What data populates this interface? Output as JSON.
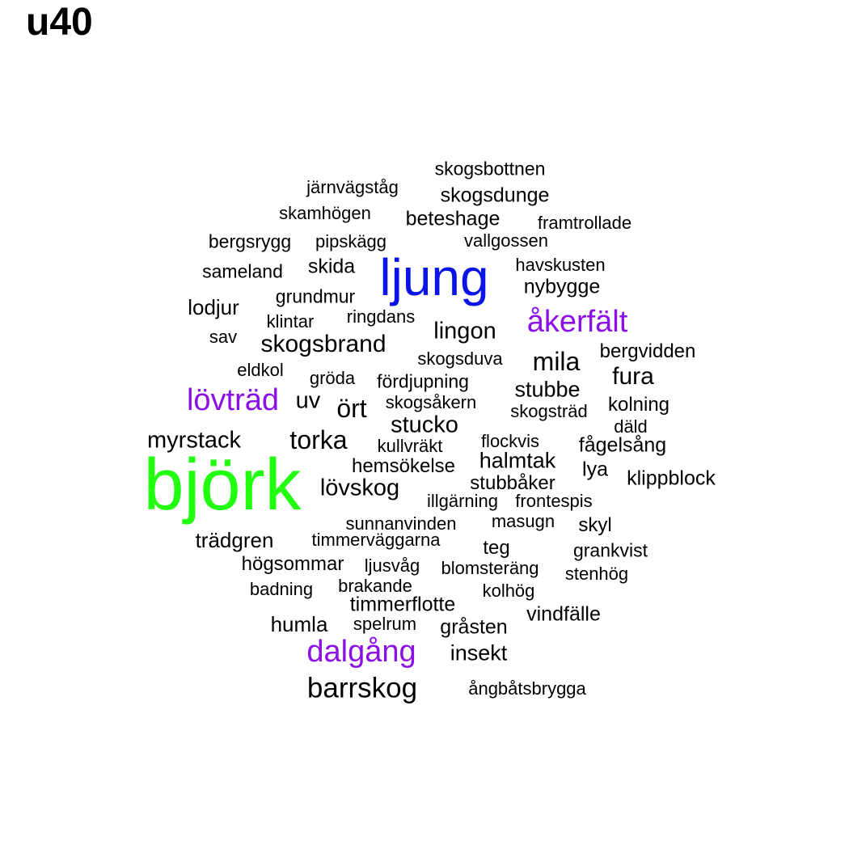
{
  "title": "u40",
  "colors": {
    "top": "#22ff11",
    "second": "#0a14e6",
    "third": "#8a10e6",
    "rest": "#000000"
  },
  "words": [
    {
      "text": "björk",
      "weight": 1,
      "color": "top"
    },
    {
      "text": "ljung",
      "weight": 0.85,
      "color": "second"
    },
    {
      "text": "åkerfält",
      "weight": 0.55,
      "color": "third"
    },
    {
      "text": "lövträd",
      "weight": 0.55,
      "color": "third"
    },
    {
      "text": "dalgång",
      "weight": 0.55,
      "color": "third"
    },
    {
      "text": "barrskog",
      "weight": 0.5,
      "color": "rest"
    },
    {
      "text": "mila",
      "weight": 0.45,
      "color": "rest"
    },
    {
      "text": "torka",
      "weight": 0.45,
      "color": "rest"
    },
    {
      "text": "ört",
      "weight": 0.45,
      "color": "rest"
    },
    {
      "text": "skogsbrand",
      "weight": 0.4,
      "color": "rest"
    },
    {
      "text": "fura",
      "weight": 0.4,
      "color": "rest"
    },
    {
      "text": "myrstack",
      "weight": 0.4,
      "color": "rest"
    },
    {
      "text": "lingon",
      "weight": 0.4,
      "color": "rest"
    },
    {
      "text": "stucko",
      "weight": 0.4,
      "color": "rest"
    },
    {
      "text": "lövskog",
      "weight": 0.4,
      "color": "rest"
    },
    {
      "text": "uv",
      "weight": 0.4,
      "color": "rest"
    },
    {
      "text": "stubbe",
      "weight": 0.35,
      "color": "rest"
    },
    {
      "text": "halmtak",
      "weight": 0.35,
      "color": "rest"
    },
    {
      "text": "insekt",
      "weight": 0.35,
      "color": "rest"
    },
    {
      "text": "trädgren",
      "weight": 0.35,
      "color": "rest"
    },
    {
      "text": "humla",
      "weight": 0.33,
      "color": "rest"
    },
    {
      "text": "lodjur",
      "weight": 0.33,
      "color": "rest"
    },
    {
      "text": "fågelsång",
      "weight": 0.33,
      "color": "rest"
    },
    {
      "text": "klippblock",
      "weight": 0.33,
      "color": "rest"
    },
    {
      "text": "lya",
      "weight": 0.33,
      "color": "rest"
    },
    {
      "text": "skogsdunge",
      "weight": 0.33,
      "color": "rest"
    },
    {
      "text": "beteshage",
      "weight": 0.33,
      "color": "rest"
    },
    {
      "text": "nybygge",
      "weight": 0.33,
      "color": "rest"
    },
    {
      "text": "skida",
      "weight": 0.33,
      "color": "rest"
    },
    {
      "text": "timmerflotte",
      "weight": 0.33,
      "color": "rest"
    },
    {
      "text": "gråsten",
      "weight": 0.33,
      "color": "rest"
    },
    {
      "text": "vindfälle",
      "weight": 0.33,
      "color": "rest"
    },
    {
      "text": "hemsökelse",
      "weight": 0.3,
      "color": "rest"
    },
    {
      "text": "stubbåker",
      "weight": 0.3,
      "color": "rest"
    },
    {
      "text": "kolning",
      "weight": 0.3,
      "color": "rest"
    },
    {
      "text": "bergvidden",
      "weight": 0.3,
      "color": "rest"
    },
    {
      "text": "teg",
      "weight": 0.3,
      "color": "rest"
    },
    {
      "text": "skyl",
      "weight": 0.3,
      "color": "rest"
    },
    {
      "text": "högsommar",
      "weight": 0.3,
      "color": "rest"
    },
    {
      "text": "grankvist",
      "weight": 0.28,
      "color": "rest"
    },
    {
      "text": "fördjupning",
      "weight": 0.28,
      "color": "rest"
    },
    {
      "text": "skogsbottnen",
      "weight": 0.28,
      "color": "rest"
    },
    {
      "text": "sameland",
      "weight": 0.28,
      "color": "rest"
    },
    {
      "text": "grundmur",
      "weight": 0.28,
      "color": "rest"
    },
    {
      "text": "bergsrygg",
      "weight": 0.28,
      "color": "rest"
    },
    {
      "text": "kullvräkt",
      "weight": 0.27,
      "color": "rest"
    },
    {
      "text": "flockvis",
      "weight": 0.27,
      "color": "rest"
    },
    {
      "text": "illgärning",
      "weight": 0.27,
      "color": "rest"
    },
    {
      "text": "frontespis",
      "weight": 0.27,
      "color": "rest"
    },
    {
      "text": "sunnanvinden",
      "weight": 0.27,
      "color": "rest"
    },
    {
      "text": "masugn",
      "weight": 0.27,
      "color": "rest"
    },
    {
      "text": "eldkol",
      "weight": 0.27,
      "color": "rest"
    },
    {
      "text": "gröda",
      "weight": 0.27,
      "color": "rest"
    },
    {
      "text": "skogsduva",
      "weight": 0.27,
      "color": "rest"
    },
    {
      "text": "skogsåkern",
      "weight": 0.27,
      "color": "rest"
    },
    {
      "text": "skogsträd",
      "weight": 0.27,
      "color": "rest"
    },
    {
      "text": "däld",
      "weight": 0.27,
      "color": "rest"
    },
    {
      "text": "sav",
      "weight": 0.27,
      "color": "rest"
    },
    {
      "text": "klintar",
      "weight": 0.27,
      "color": "rest"
    },
    {
      "text": "ringdans",
      "weight": 0.27,
      "color": "rest"
    },
    {
      "text": "havskusten",
      "weight": 0.27,
      "color": "rest"
    },
    {
      "text": "vallgossen",
      "weight": 0.27,
      "color": "rest"
    },
    {
      "text": "pipskägg",
      "weight": 0.27,
      "color": "rest"
    },
    {
      "text": "skamhögen",
      "weight": 0.27,
      "color": "rest"
    },
    {
      "text": "framtrollade",
      "weight": 0.27,
      "color": "rest"
    },
    {
      "text": "järnvägståg",
      "weight": 0.27,
      "color": "rest"
    },
    {
      "text": "timmerväggarna",
      "weight": 0.27,
      "color": "rest"
    },
    {
      "text": "ljusvåg",
      "weight": 0.27,
      "color": "rest"
    },
    {
      "text": "blomsteräng",
      "weight": 0.27,
      "color": "rest"
    },
    {
      "text": "stenhög",
      "weight": 0.27,
      "color": "rest"
    },
    {
      "text": "badning",
      "weight": 0.27,
      "color": "rest"
    },
    {
      "text": "brakande",
      "weight": 0.27,
      "color": "rest"
    },
    {
      "text": "kolhög",
      "weight": 0.27,
      "color": "rest"
    },
    {
      "text": "spelrum",
      "weight": 0.27,
      "color": "rest"
    },
    {
      "text": "ångbåtsbrygga",
      "weight": 0.27,
      "color": "rest"
    }
  ]
}
